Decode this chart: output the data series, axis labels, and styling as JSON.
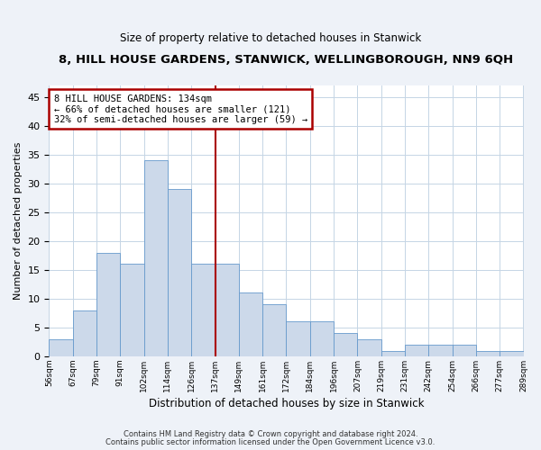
{
  "title": "8, HILL HOUSE GARDENS, STANWICK, WELLINGBOROUGH, NN9 6QH",
  "subtitle": "Size of property relative to detached houses in Stanwick",
  "xlabel": "Distribution of detached houses by size in Stanwick",
  "ylabel": "Number of detached properties",
  "bar_labels": [
    "56sqm",
    "67sqm",
    "79sqm",
    "91sqm",
    "102sqm",
    "114sqm",
    "126sqm",
    "137sqm",
    "149sqm",
    "161sqm",
    "172sqm",
    "184sqm",
    "196sqm",
    "207sqm",
    "219sqm",
    "231sqm",
    "242sqm",
    "254sqm",
    "266sqm",
    "277sqm",
    "289sqm"
  ],
  "bar_heights": [
    3,
    8,
    18,
    16,
    34,
    29,
    16,
    16,
    11,
    9,
    6,
    6,
    4,
    3,
    1,
    2,
    2,
    2,
    1,
    1
  ],
  "bar_color": "#ccd9ea",
  "bar_edge_color": "#6699cc",
  "vline_x_index": 6,
  "vline_color": "#aa0000",
  "annotation_text": "8 HILL HOUSE GARDENS: 134sqm\n← 66% of detached houses are smaller (121)\n32% of semi-detached houses are larger (59) →",
  "annotation_box_color": "#aa0000",
  "annotation_text_fontsize": 7.5,
  "title_fontsize": 9.5,
  "subtitle_fontsize": 8.5,
  "xlabel_fontsize": 8.5,
  "ylabel_fontsize": 8,
  "yticks": [
    0,
    5,
    10,
    15,
    20,
    25,
    30,
    35,
    40,
    45
  ],
  "ylim": [
    0,
    47
  ],
  "footnote1": "Contains HM Land Registry data © Crown copyright and database right 2024.",
  "footnote2": "Contains public sector information licensed under the Open Government Licence v3.0.",
  "bg_color": "#eef2f8",
  "plot_bg_color": "#ffffff",
  "grid_color": "#c5d5e5"
}
